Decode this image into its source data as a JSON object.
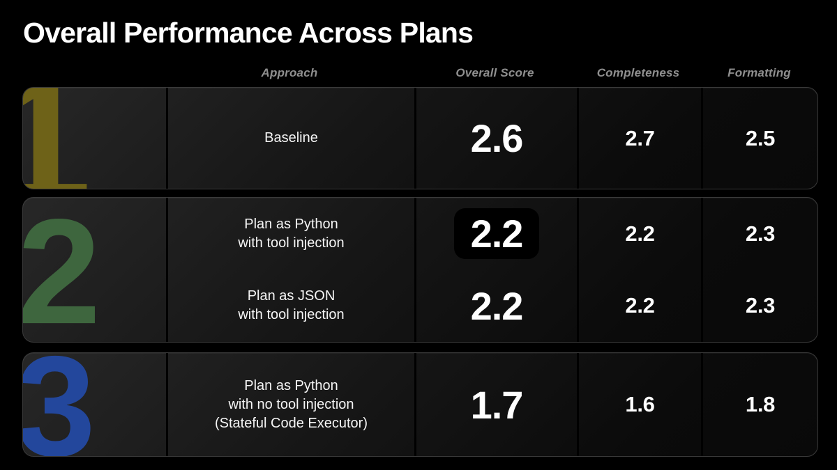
{
  "title": "Overall Performance Across Plans",
  "table": {
    "headers": {
      "approach": "Approach",
      "overall": "Overall Score",
      "completeness": "Completeness",
      "formatting": "Formatting"
    },
    "groups": [
      {
        "number": "1",
        "color": "#6e6218",
        "entries": [
          {
            "approach": "Baseline",
            "overall": "2.6",
            "completeness": "2.7",
            "formatting": "2.5"
          }
        ]
      },
      {
        "number": "2",
        "color": "#3e663e",
        "entries": [
          {
            "approach": "Plan as Python\nwith tool injection",
            "overall": "2.2",
            "completeness": "2.2",
            "formatting": "2.3",
            "highlighted": true
          },
          {
            "approach": "Plan as JSON\nwith tool injection",
            "overall": "2.2",
            "completeness": "2.2",
            "formatting": "2.3",
            "highlighted": false
          }
        ]
      },
      {
        "number": "3",
        "color": "#23479c",
        "entries": [
          {
            "approach": "Plan as Python\nwith no tool injection\n(Stateful Code Executor)",
            "overall": "1.7",
            "completeness": "1.6",
            "formatting": "1.8"
          }
        ]
      }
    ]
  },
  "chart_data": {
    "type": "table",
    "title": "Overall Performance Across Plans",
    "columns": [
      "Plan",
      "Approach",
      "Overall Score",
      "Completeness",
      "Formatting"
    ],
    "rows": [
      {
        "plan": 1,
        "approach": "Baseline",
        "overall_score": 2.6,
        "completeness": 2.7,
        "formatting": 2.5,
        "highlighted": false
      },
      {
        "plan": 2,
        "approach": "Plan as Python with tool injection",
        "overall_score": 2.2,
        "completeness": 2.2,
        "formatting": 2.3,
        "highlighted": true
      },
      {
        "plan": 2,
        "approach": "Plan as JSON with tool injection",
        "overall_score": 2.2,
        "completeness": 2.2,
        "formatting": 2.3,
        "highlighted": false
      },
      {
        "plan": 3,
        "approach": "Plan as Python with no tool injection (Stateful Code Executor)",
        "overall_score": 1.7,
        "completeness": 1.6,
        "formatting": 1.8,
        "highlighted": false
      }
    ],
    "plan_colors": {
      "1": "#6e6218",
      "2": "#3e663e",
      "3": "#23479c"
    },
    "layout": {
      "background": "#000000",
      "header_style": "italic",
      "score_scale_max": 3
    }
  }
}
